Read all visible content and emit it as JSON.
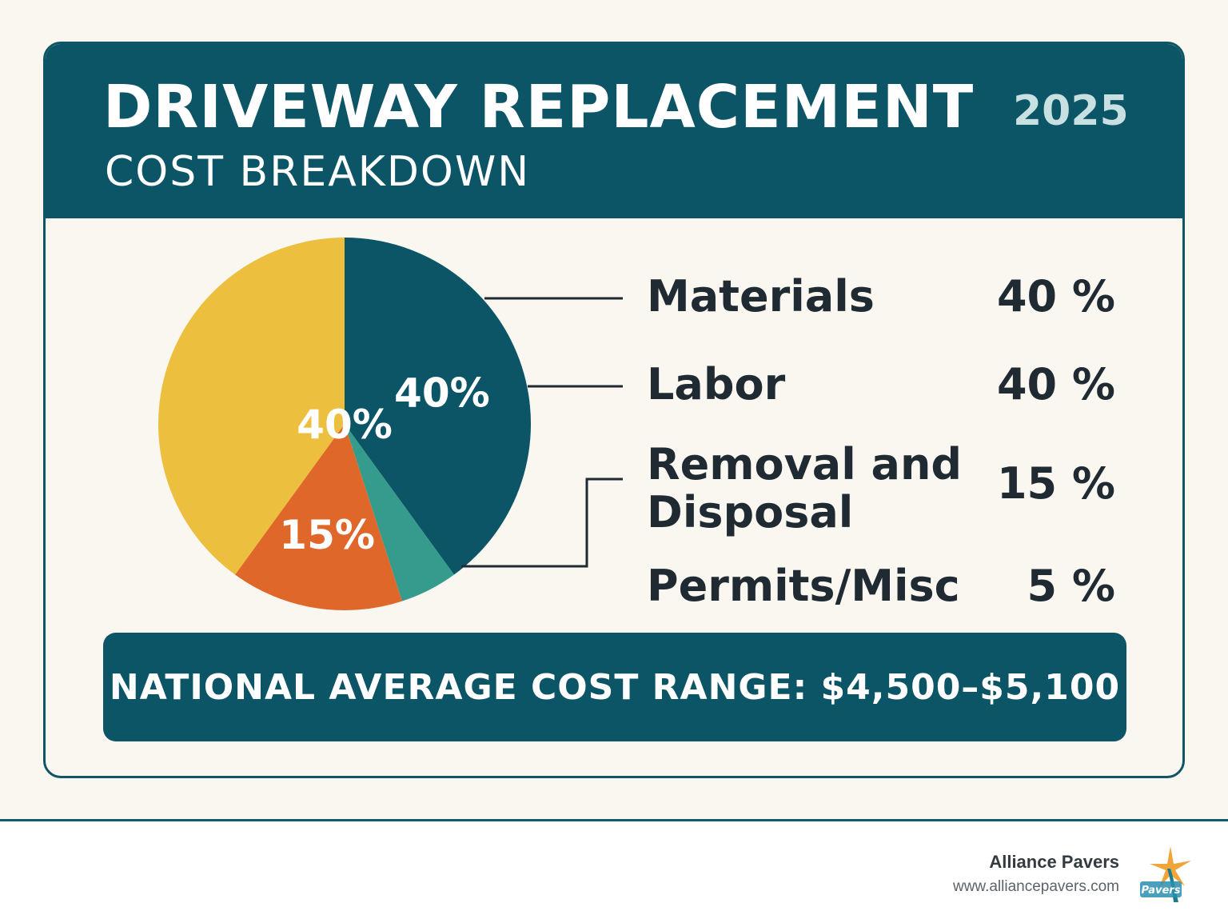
{
  "header": {
    "title": "DRIVEWAY REPLACEMENT",
    "year": "2025",
    "subtitle": "COST BREAKDOWN"
  },
  "colors": {
    "teal_dark": "#0b5566",
    "teal_light": "#359b8c",
    "orange": "#e0672a",
    "yellow": "#ecbf3e"
  },
  "chart_data": {
    "type": "pie",
    "title": "DRIVEWAY REPLACEMENT COST BREAKDOWN",
    "slices": [
      {
        "name": "Materials",
        "value": 40,
        "label": "40%",
        "legend_value": "40 %",
        "color": "#0b5566"
      },
      {
        "name": "Labor",
        "value": 40,
        "label": "40%",
        "legend_value": "40 %",
        "color": "#ecbf3e"
      },
      {
        "name": "Removal and Disposal",
        "value": 15,
        "label": "15%",
        "legend_value": "15 %",
        "color": "#e0672a"
      },
      {
        "name": "Permits/Misc",
        "value": 5,
        "label": "",
        "legend_value": "5 %",
        "color": "#359b8c"
      }
    ],
    "legend": {
      "items": [
        {
          "label": "Materials",
          "value": "40 %"
        },
        {
          "label": "Labor",
          "value": "40 %"
        },
        {
          "label_line1": "Removal and",
          "label_line2": "Disposal",
          "value": "15 %"
        },
        {
          "label": "Permits/Misc",
          "value": "5 %"
        }
      ]
    }
  },
  "banner": {
    "text": "NATIONAL AVERAGE COST RANGE: $4,500–$5,100"
  },
  "footer": {
    "brand_name": "Alliance Pavers",
    "brand_url": "www.alliancepavers.com",
    "logo_icon": "alliance-pavers-logo-icon"
  }
}
